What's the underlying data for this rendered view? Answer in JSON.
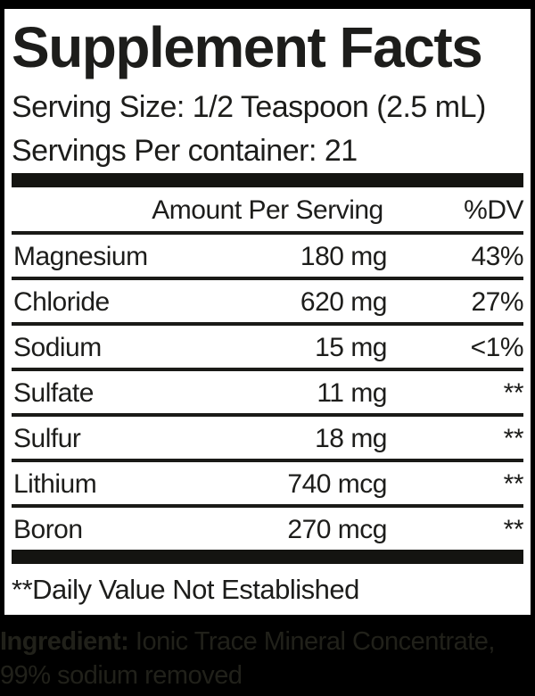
{
  "label": {
    "title": "Supplement Facts",
    "serving_size": "Serving Size: 1/2 Teaspoon (2.5 mL)",
    "servings_per_container": "Servings Per container: 21",
    "table": {
      "header": {
        "amount_col": "Amount Per Serving",
        "dv_col": "%DV"
      },
      "rows": [
        {
          "name": "Magnesium",
          "amount": "180 mg",
          "dv": "43%"
        },
        {
          "name": "Chloride",
          "amount": "620 mg",
          "dv": "27%"
        },
        {
          "name": "Sodium",
          "amount": "15 mg",
          "dv": "<1%"
        },
        {
          "name": "Sulfate",
          "amount": "11 mg",
          "dv": "**"
        },
        {
          "name": "Sulfur",
          "amount": "18 mg",
          "dv": "**"
        },
        {
          "name": "Lithium",
          "amount": "740 mcg",
          "dv": "**"
        },
        {
          "name": "Boron",
          "amount": "270 mcg",
          "dv": "**"
        }
      ]
    },
    "footnote": "**Daily Value Not Established",
    "ingredient": {
      "label": "Ingredient:",
      "text": " Ionic Trace Mineral Concentrate, 99% sodium removed"
    }
  },
  "colors": {
    "background": "#000000",
    "panel": "#ffffff",
    "text": "#1d1d1b",
    "rule": "#1a1a17",
    "ingredient_text": "#21211a"
  }
}
